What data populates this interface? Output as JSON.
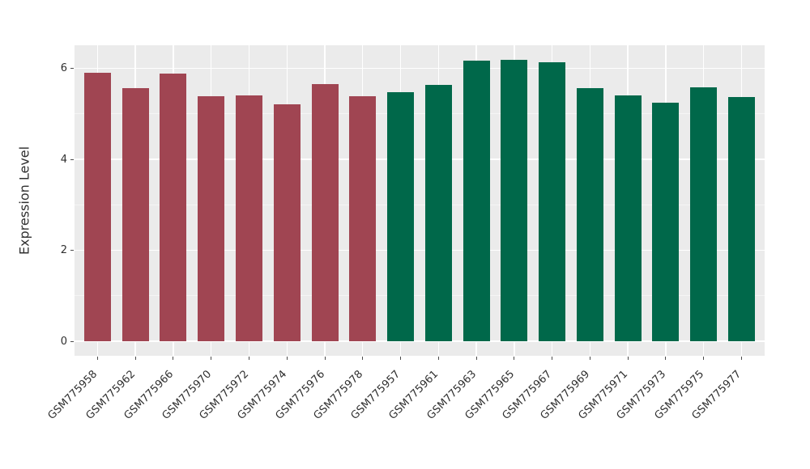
{
  "chart_data": {
    "type": "bar",
    "title": "",
    "xlabel": "",
    "ylabel": "Expression Level",
    "categories": [
      "GSM775958",
      "GSM775962",
      "GSM775966",
      "GSM775970",
      "GSM775972",
      "GSM775974",
      "GSM775976",
      "GSM775978",
      "GSM775957",
      "GSM775961",
      "GSM775963",
      "GSM775965",
      "GSM775967",
      "GSM775969",
      "GSM775971",
      "GSM775973",
      "GSM775975",
      "GSM775977"
    ],
    "values": [
      5.91,
      5.56,
      5.88,
      5.39,
      5.4,
      5.21,
      5.65,
      5.39,
      5.47,
      5.63,
      6.17,
      6.19,
      6.13,
      5.56,
      5.4,
      5.25,
      5.59,
      5.37
    ],
    "groups": [
      "red",
      "red",
      "red",
      "red",
      "red",
      "red",
      "red",
      "red",
      "green",
      "green",
      "green",
      "green",
      "green",
      "green",
      "green",
      "green",
      "green",
      "green"
    ],
    "group_colors": {
      "red": "#A04552",
      "green": "#00684A"
    },
    "yticks": [
      0,
      2,
      4,
      6
    ],
    "minor_yticks": [
      1,
      3,
      5
    ],
    "ylim": [
      -0.31,
      6.49
    ],
    "grid": true,
    "legend_position": "none",
    "panel_background": "#EBEBEB",
    "grid_major_color": "#FFFFFF",
    "grid_minor_color": "#F5F5F5",
    "tick_mark_color": "#4D4D4D",
    "tick_label_color": "#2F2F2F",
    "axis_label_color": "#2F2F2F"
  }
}
